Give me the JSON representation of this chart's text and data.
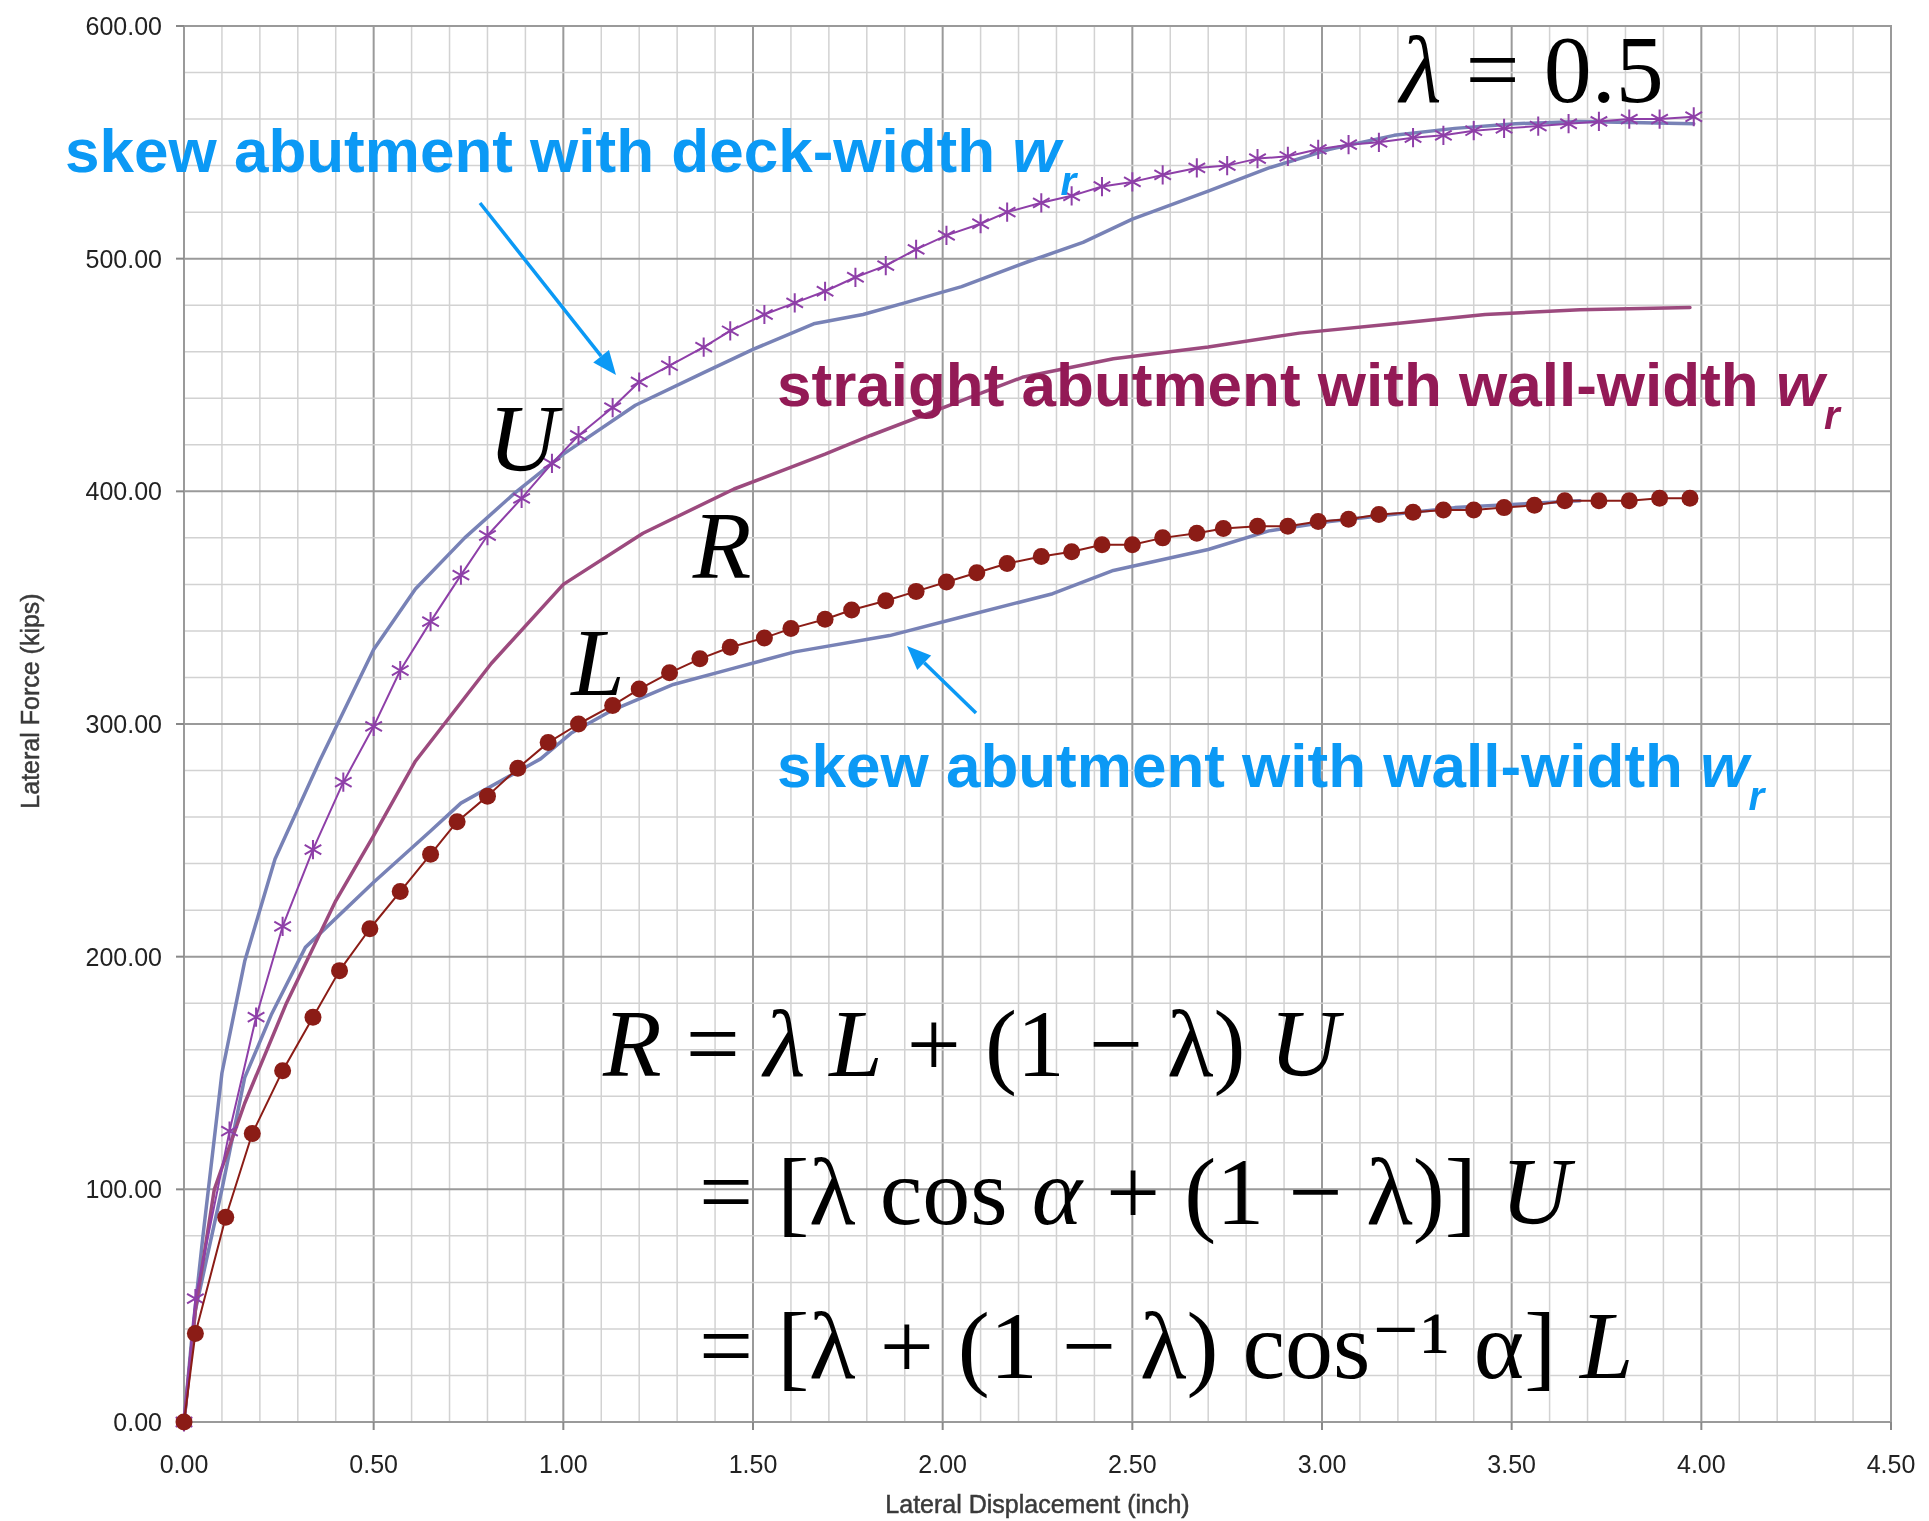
{
  "chart_data": {
    "type": "line",
    "xlabel": "Lateral Displacement (inch)",
    "ylabel": "Lateral Force (kips)",
    "xlim": [
      0,
      4.5
    ],
    "ylim": [
      0,
      600
    ],
    "xticks": [
      {
        "value": 0,
        "label": "0.00"
      },
      {
        "value": 0.1,
        "label": null
      },
      {
        "value": 0.2,
        "label": null
      },
      {
        "value": 0.3,
        "label": null
      },
      {
        "value": 0.4,
        "label": null
      },
      {
        "value": 0.5,
        "label": "0.50"
      },
      {
        "value": 0.6,
        "label": null
      },
      {
        "value": 0.7,
        "label": null
      },
      {
        "value": 0.8,
        "label": null
      },
      {
        "value": 0.9,
        "label": null
      },
      {
        "value": 1,
        "label": "1.00"
      },
      {
        "value": 1.1,
        "label": null
      },
      {
        "value": 1.2,
        "label": null
      },
      {
        "value": 1.3,
        "label": null
      },
      {
        "value": 1.4,
        "label": null
      },
      {
        "value": 1.5,
        "label": "1.50"
      },
      {
        "value": 1.6,
        "label": null
      },
      {
        "value": 1.7,
        "label": null
      },
      {
        "value": 1.8,
        "label": null
      },
      {
        "value": 1.9,
        "label": null
      },
      {
        "value": 2,
        "label": "2.00"
      },
      {
        "value": 2.1,
        "label": null
      },
      {
        "value": 2.2,
        "label": null
      },
      {
        "value": 2.3,
        "label": null
      },
      {
        "value": 2.4,
        "label": null
      },
      {
        "value": 2.5,
        "label": "2.50"
      },
      {
        "value": 2.6,
        "label": null
      },
      {
        "value": 2.7,
        "label": null
      },
      {
        "value": 2.8,
        "label": null
      },
      {
        "value": 2.9,
        "label": null
      },
      {
        "value": 3,
        "label": "3.00"
      },
      {
        "value": 3.1,
        "label": null
      },
      {
        "value": 3.2,
        "label": null
      },
      {
        "value": 3.3,
        "label": null
      },
      {
        "value": 3.4,
        "label": null
      },
      {
        "value": 3.5,
        "label": "3.50"
      },
      {
        "value": 3.6,
        "label": null
      },
      {
        "value": 3.7,
        "label": null
      },
      {
        "value": 3.8,
        "label": null
      },
      {
        "value": 3.9,
        "label": null
      },
      {
        "value": 4,
        "label": "4.00"
      },
      {
        "value": 4.1,
        "label": null
      },
      {
        "value": 4.2,
        "label": null
      },
      {
        "value": 4.3,
        "label": null
      },
      {
        "value": 4.4,
        "label": null
      },
      {
        "value": 4.5,
        "label": "4.50"
      }
    ],
    "yticks": [
      {
        "value": 0,
        "label": "0.00"
      },
      {
        "value": 20,
        "label": null
      },
      {
        "value": 40,
        "label": null
      },
      {
        "value": 60,
        "label": null
      },
      {
        "value": 80,
        "label": null
      },
      {
        "value": 100,
        "label": "100.00"
      },
      {
        "value": 120,
        "label": null
      },
      {
        "value": 140,
        "label": null
      },
      {
        "value": 160,
        "label": null
      },
      {
        "value": 180,
        "label": null
      },
      {
        "value": 200,
        "label": "200.00"
      },
      {
        "value": 220,
        "label": null
      },
      {
        "value": 240,
        "label": null
      },
      {
        "value": 260,
        "label": null
      },
      {
        "value": 280,
        "label": null
      },
      {
        "value": 300,
        "label": "300.00"
      },
      {
        "value": 320,
        "label": null
      },
      {
        "value": 340,
        "label": null
      },
      {
        "value": 360,
        "label": null
      },
      {
        "value": 380,
        "label": null
      },
      {
        "value": 400,
        "label": "400.00"
      },
      {
        "value": 420,
        "label": null
      },
      {
        "value": 440,
        "label": null
      },
      {
        "value": 460,
        "label": null
      },
      {
        "value": 480,
        "label": null
      },
      {
        "value": 500,
        "label": "500.00"
      },
      {
        "value": 520,
        "label": null
      },
      {
        "value": 540,
        "label": null
      },
      {
        "value": 560,
        "label": null
      },
      {
        "value": 580,
        "label": null
      },
      {
        "value": 600,
        "label": "600.00"
      }
    ],
    "grid": true,
    "series": [
      {
        "color": "#7882b6",
        "x": [
          0,
          0.02,
          0.05,
          0.1,
          0.16,
          0.24,
          0.36,
          0.5,
          0.61,
          0.74,
          0.87,
          1,
          1.19,
          1.37,
          1.5,
          1.66,
          1.79,
          1.9,
          2.05,
          2.23,
          2.37,
          2.5,
          2.7,
          2.86,
          3.02,
          3.19,
          3.35,
          3.51,
          3.68,
          3.98
        ],
        "values": [
          0,
          35,
          80,
          150,
          198,
          242,
          285,
          332,
          358,
          380,
          399,
          416,
          437,
          451,
          461,
          472,
          476,
          481,
          488,
          499,
          507,
          517,
          529,
          539,
          547,
          553,
          556,
          558,
          559,
          558
        ]
      },
      {
        "color": "#7882b6",
        "x": [
          0,
          0.03,
          0.1,
          0.16,
          0.23,
          0.32,
          0.5,
          0.65,
          0.73,
          0.94,
          1.02,
          1.13,
          1.29,
          1.45,
          1.61,
          1.86,
          2.05,
          2.29,
          2.45,
          2.7,
          2.86,
          3.02,
          3.35,
          3.68
        ],
        "values": [
          0,
          48,
          100,
          148,
          175,
          204,
          232,
          254,
          266,
          285,
          296,
          306,
          317,
          324,
          331,
          338,
          346,
          356,
          366,
          375,
          383,
          387,
          393,
          396
        ]
      },
      {
        "color": "#9c4a7e",
        "x": [
          0,
          0.03,
          0.08,
          0.16,
          0.27,
          0.4,
          0.5,
          0.61,
          0.81,
          1,
          1.21,
          1.45,
          1.69,
          1.81,
          2.05,
          2.21,
          2.45,
          2.7,
          2.94,
          3.19,
          3.43,
          3.68,
          3.97
        ],
        "values": [
          0,
          48,
          100,
          137,
          180,
          224,
          252,
          284,
          326,
          360,
          382,
          401,
          416,
          424,
          439,
          449,
          457,
          462,
          468,
          472,
          476,
          478,
          479
        ]
      },
      {
        "marker": "cross",
        "color": "#8e3fa8",
        "x": [
          0,
          0.03,
          0.12,
          0.19,
          0.26,
          0.34,
          0.42,
          0.5,
          0.57,
          0.65,
          0.73,
          0.8,
          0.89,
          0.97,
          1.04,
          1.13,
          1.2,
          1.28,
          1.37,
          1.44,
          1.53,
          1.61,
          1.69,
          1.77,
          1.85,
          1.93,
          2.01,
          2.1,
          2.17,
          2.26,
          2.34,
          2.42,
          2.5,
          2.58,
          2.67,
          2.75,
          2.83,
          2.91,
          2.99,
          3.07,
          3.15,
          3.24,
          3.32,
          3.4,
          3.48,
          3.57,
          3.65,
          3.73,
          3.81,
          3.89,
          3.98
        ],
        "values": [
          0,
          53,
          125,
          174,
          213,
          246,
          275,
          299,
          323,
          344,
          364,
          381,
          397,
          412,
          424,
          436,
          447,
          454,
          462,
          469,
          476,
          481,
          486,
          492,
          497,
          504,
          510,
          515,
          520,
          524,
          527,
          531,
          533,
          536,
          539,
          540,
          543,
          544,
          547,
          549,
          550,
          552,
          553,
          555,
          556,
          557,
          558,
          559,
          560,
          560,
          561
        ]
      },
      {
        "marker": "circle",
        "color": "#8b1c16",
        "x": [
          0,
          0.03,
          0.11,
          0.18,
          0.26,
          0.34,
          0.41,
          0.49,
          0.57,
          0.65,
          0.72,
          0.8,
          0.88,
          0.96,
          1.04,
          1.13,
          1.2,
          1.28,
          1.36,
          1.44,
          1.53,
          1.6,
          1.69,
          1.76,
          1.85,
          1.93,
          2.01,
          2.09,
          2.17,
          2.26,
          2.34,
          2.42,
          2.5,
          2.58,
          2.67,
          2.74,
          2.83,
          2.91,
          2.99,
          3.07,
          3.15,
          3.24,
          3.32,
          3.4,
          3.48,
          3.56,
          3.64,
          3.73,
          3.81,
          3.89,
          3.97
        ],
        "values": [
          0,
          38,
          88,
          124,
          151,
          174,
          194,
          212,
          228,
          244,
          258,
          269,
          281,
          292,
          300,
          308,
          315,
          322,
          328,
          333,
          337,
          341,
          345,
          349,
          353,
          357,
          361,
          365,
          369,
          372,
          374,
          377,
          377,
          380,
          382,
          384,
          385,
          385,
          387,
          388,
          390,
          391,
          392,
          392,
          393,
          394,
          396,
          396,
          396,
          397,
          397
        ]
      }
    ],
    "annotations": [
      "skew abutment with deck-width w$_{r}$",
      "straight abutment with wall-width w$_{r}$",
      "skew abutment with wall-width w$_{r}$",
      "U",
      "R",
      "L",
      "λ = 0.5",
      "R = λ L + (1 − λ) U",
      "= [λ cos α + (1 − λ)] U",
      "= [λ + (1 − λ) cos⁻¹ α] L"
    ]
  }
}
